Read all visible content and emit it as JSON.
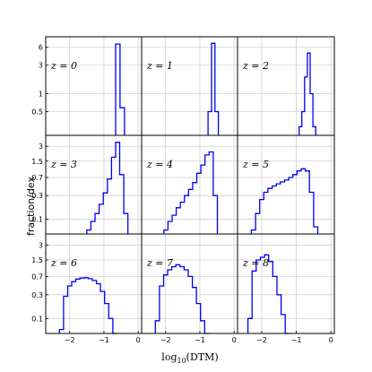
{
  "figure": {
    "ylabel": "fraction/dex",
    "xlabel": "log10(DTM)",
    "xlabel_main": "log",
    "xlabel_sub": "10",
    "xlabel_rest": "(DTM)"
  },
  "chart_data": {
    "type": "histogram-grid",
    "rows": 3,
    "cols": 3,
    "row_yscale": "log",
    "row_ylims": [
      [
        0.2,
        9
      ],
      [
        0.05,
        5
      ],
      [
        0.05,
        5
      ]
    ],
    "row_yticks": [
      {
        "values": [
          0.5,
          1,
          3,
          6
        ],
        "labels": [
          "0.5",
          "1",
          "3",
          "6"
        ]
      },
      {
        "values": [
          0.1,
          0.3,
          0.7,
          1.5,
          3
        ],
        "labels": [
          "0.1",
          "0.3",
          "0.7",
          "1.5",
          "3"
        ]
      },
      {
        "values": [
          0.1,
          0.3,
          0.7,
          1.5,
          3
        ],
        "labels": [
          "0.1",
          "0.3",
          "0.7",
          "1.5",
          "3"
        ]
      }
    ],
    "xlim": [
      -2.7,
      0.1
    ],
    "xticks": [
      -2,
      -1,
      0
    ],
    "xtick_labels": [
      "−2",
      "−1",
      "0"
    ],
    "grid": true,
    "line_color": "#0000ee",
    "panels": [
      {
        "label": "z = 0",
        "bins": [
          [
            -0.66,
            -0.53,
            6.8
          ],
          [
            -0.53,
            -0.4,
            0.58
          ]
        ]
      },
      {
        "label": "z = 1",
        "bins": [
          [
            -0.76,
            -0.66,
            0.5
          ],
          [
            -0.66,
            -0.56,
            7.0
          ],
          [
            -0.56,
            -0.46,
            0.5
          ]
        ]
      },
      {
        "label": "z = 2",
        "bins": [
          [
            -0.92,
            -0.84,
            0.28
          ],
          [
            -0.84,
            -0.76,
            0.5
          ],
          [
            -0.76,
            -0.68,
            1.9
          ],
          [
            -0.68,
            -0.6,
            4.8
          ],
          [
            -0.6,
            -0.52,
            1.0
          ],
          [
            -0.52,
            -0.44,
            0.28
          ]
        ]
      },
      {
        "label": "z = 3",
        "bins": [
          [
            -1.5,
            -1.38,
            0.06
          ],
          [
            -1.38,
            -1.26,
            0.09
          ],
          [
            -1.26,
            -1.14,
            0.13
          ],
          [
            -1.14,
            -1.02,
            0.2
          ],
          [
            -1.02,
            -0.9,
            0.34
          ],
          [
            -0.9,
            -0.78,
            0.65
          ],
          [
            -0.78,
            -0.66,
            1.8
          ],
          [
            -0.66,
            -0.54,
            3.6
          ],
          [
            -0.54,
            -0.42,
            0.8
          ],
          [
            -0.42,
            -0.3,
            0.13
          ]
        ]
      },
      {
        "label": "z = 4",
        "bins": [
          [
            -2.05,
            -1.93,
            0.06
          ],
          [
            -1.93,
            -1.81,
            0.09
          ],
          [
            -1.81,
            -1.69,
            0.12
          ],
          [
            -1.69,
            -1.57,
            0.17
          ],
          [
            -1.57,
            -1.45,
            0.22
          ],
          [
            -1.45,
            -1.33,
            0.3
          ],
          [
            -1.33,
            -1.21,
            0.4
          ],
          [
            -1.21,
            -1.09,
            0.55
          ],
          [
            -1.09,
            -0.97,
            0.85
          ],
          [
            -0.97,
            -0.85,
            1.25
          ],
          [
            -0.85,
            -0.73,
            2.0
          ],
          [
            -0.73,
            -0.61,
            2.3
          ],
          [
            -0.61,
            -0.49,
            0.3
          ]
        ]
      },
      {
        "label": "z = 5",
        "bins": [
          [
            -2.3,
            -2.18,
            0.06
          ],
          [
            -2.18,
            -2.06,
            0.13
          ],
          [
            -2.06,
            -1.94,
            0.25
          ],
          [
            -1.94,
            -1.82,
            0.35
          ],
          [
            -1.82,
            -1.7,
            0.42
          ],
          [
            -1.7,
            -1.58,
            0.47
          ],
          [
            -1.58,
            -1.46,
            0.52
          ],
          [
            -1.46,
            -1.34,
            0.57
          ],
          [
            -1.34,
            -1.22,
            0.62
          ],
          [
            -1.22,
            -1.1,
            0.7
          ],
          [
            -1.1,
            -0.98,
            0.8
          ],
          [
            -0.98,
            -0.86,
            0.95
          ],
          [
            -0.86,
            -0.74,
            1.05
          ],
          [
            -0.74,
            -0.62,
            0.95
          ],
          [
            -0.62,
            -0.5,
            0.35
          ],
          [
            -0.5,
            -0.38,
            0.07
          ]
        ]
      },
      {
        "label": "z = 6",
        "bins": [
          [
            -2.3,
            -2.18,
            0.06
          ],
          [
            -2.18,
            -2.06,
            0.28
          ],
          [
            -2.06,
            -1.94,
            0.45
          ],
          [
            -1.94,
            -1.82,
            0.55
          ],
          [
            -1.82,
            -1.7,
            0.62
          ],
          [
            -1.7,
            -1.58,
            0.65
          ],
          [
            -1.58,
            -1.46,
            0.66
          ],
          [
            -1.46,
            -1.34,
            0.63
          ],
          [
            -1.34,
            -1.22,
            0.58
          ],
          [
            -1.22,
            -1.1,
            0.5
          ],
          [
            -1.1,
            -0.98,
            0.35
          ],
          [
            -0.98,
            -0.86,
            0.2
          ],
          [
            -0.86,
            -0.74,
            0.1
          ],
          [
            -0.74,
            -0.62,
            0.05
          ]
        ]
      },
      {
        "label": "z = 7",
        "bins": [
          [
            -2.3,
            -2.18,
            0.09
          ],
          [
            -2.18,
            -2.06,
            0.45
          ],
          [
            -2.06,
            -1.94,
            0.75
          ],
          [
            -1.94,
            -1.82,
            0.95
          ],
          [
            -1.82,
            -1.7,
            1.1
          ],
          [
            -1.7,
            -1.58,
            1.2
          ],
          [
            -1.58,
            -1.46,
            1.1
          ],
          [
            -1.46,
            -1.34,
            0.95
          ],
          [
            -1.34,
            -1.22,
            0.7
          ],
          [
            -1.22,
            -1.1,
            0.42
          ],
          [
            -1.1,
            -0.98,
            0.2
          ],
          [
            -0.98,
            -0.86,
            0.09
          ],
          [
            -0.86,
            -0.74,
            0.05
          ]
        ]
      },
      {
        "label": "z = 8",
        "bins": [
          [
            -2.4,
            -2.28,
            0.1
          ],
          [
            -2.28,
            -2.16,
            0.9
          ],
          [
            -2.16,
            -2.04,
            1.5
          ],
          [
            -2.04,
            -1.92,
            1.7
          ],
          [
            -1.92,
            -1.8,
            1.9
          ],
          [
            -1.8,
            -1.68,
            1.4
          ],
          [
            -1.68,
            -1.56,
            0.7
          ],
          [
            -1.56,
            -1.44,
            0.3
          ],
          [
            -1.44,
            -1.32,
            0.12
          ],
          [
            -1.32,
            -1.2,
            0.05
          ]
        ]
      }
    ]
  }
}
